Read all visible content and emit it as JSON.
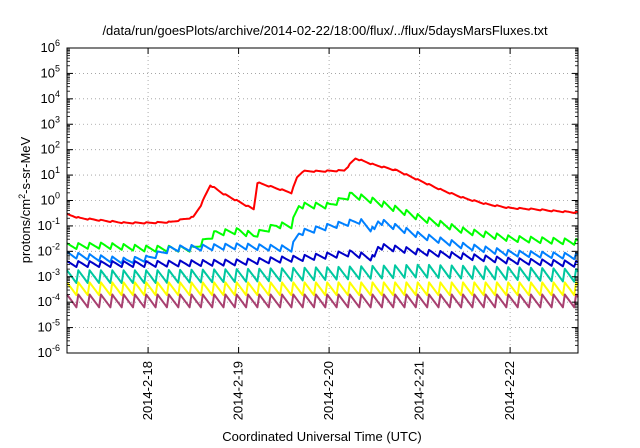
{
  "chart_data": {
    "type": "line",
    "title": "/data/run/goesPlots/archive/2014-02-22/18:00/flux/../flux/5daysMarsFluxes.txt",
    "xlabel": "Coordinated Universal Time (UTC)",
    "ylabel_parts": [
      "protons/cm",
      "2",
      "-s-sr-MeV"
    ],
    "y_scale": "log",
    "ylim": [
      1e-06,
      1000000.0
    ],
    "y_ticks": [
      {
        "value": 1e-06,
        "base": "10",
        "exp": "-6"
      },
      {
        "value": 1e-05,
        "base": "10",
        "exp": "-5"
      },
      {
        "value": 0.0001,
        "base": "10",
        "exp": "-4"
      },
      {
        "value": 0.001,
        "base": "10",
        "exp": "-3"
      },
      {
        "value": 0.01,
        "base": "10",
        "exp": "-2"
      },
      {
        "value": 0.1,
        "base": "10",
        "exp": "-1"
      },
      {
        "value": 1,
        "base": "10",
        "exp": "0"
      },
      {
        "value": 10.0,
        "base": "10",
        "exp": "1"
      },
      {
        "value": 100.0,
        "base": "10",
        "exp": "2"
      },
      {
        "value": 1000.0,
        "base": "10",
        "exp": "3"
      },
      {
        "value": 10000.0,
        "base": "10",
        "exp": "4"
      },
      {
        "value": 100000.0,
        "base": "10",
        "exp": "5"
      },
      {
        "value": 1000000.0,
        "base": "10",
        "exp": "6"
      }
    ],
    "x_range": [
      "2014-02-17T02:30",
      "2014-02-22T18:00"
    ],
    "x_ticks": [
      {
        "date": "2014-02-18T00:00",
        "label": "2014-2-18"
      },
      {
        "date": "2014-02-19T00:00",
        "label": "2014-2-19"
      },
      {
        "date": "2014-02-20T00:00",
        "label": "2014-2-20"
      },
      {
        "date": "2014-02-21T00:00",
        "label": "2014-2-21"
      },
      {
        "date": "2014-02-22T00:00",
        "label": "2014-2-22"
      }
    ],
    "grid": true,
    "legend": "none",
    "series": [
      {
        "color": "#ff0000",
        "points": [
          [
            "2014-02-17T02:30",
            0.28
          ],
          [
            "2014-02-17T06:00",
            0.2
          ],
          [
            "2014-02-17T12:00",
            0.16
          ],
          [
            "2014-02-17T18:00",
            0.13
          ],
          [
            "2014-02-18T00:00",
            0.13
          ],
          [
            "2014-02-18T06:00",
            0.14
          ],
          [
            "2014-02-18T12:00",
            0.22
          ],
          [
            "2014-02-18T14:00",
            0.65
          ],
          [
            "2014-02-18T16:30",
            4.0
          ],
          [
            "2014-02-18T20:00",
            1.8
          ],
          [
            "2014-02-19T00:00",
            0.9
          ],
          [
            "2014-02-19T04:00",
            0.45
          ],
          [
            "2014-02-19T05:00",
            5.0
          ],
          [
            "2014-02-19T10:00",
            3.0
          ],
          [
            "2014-02-19T14:00",
            2.0
          ],
          [
            "2014-02-19T15:30",
            8.0
          ],
          [
            "2014-02-19T17:00",
            14.0
          ],
          [
            "2014-02-19T22:00",
            14.0
          ],
          [
            "2014-02-20T04:00",
            15.0
          ],
          [
            "2014-02-20T07:00",
            45.0
          ],
          [
            "2014-02-20T12:00",
            25.0
          ],
          [
            "2014-02-20T18:00",
            15.0
          ],
          [
            "2014-02-21T00:00",
            6.0
          ],
          [
            "2014-02-21T06:00",
            2.5
          ],
          [
            "2014-02-21T12:00",
            1.2
          ],
          [
            "2014-02-21T18:00",
            0.7
          ],
          [
            "2014-02-22T00:00",
            0.5
          ],
          [
            "2014-02-22T06:00",
            0.45
          ],
          [
            "2014-02-22T12:00",
            0.38
          ],
          [
            "2014-02-22T18:00",
            0.33
          ]
        ]
      },
      {
        "color": "#00ff00",
        "points": [
          [
            "2014-02-17T02:30",
            0.015
          ],
          [
            "2014-02-17T12:00",
            0.016
          ],
          [
            "2014-02-18T00:00",
            0.012
          ],
          [
            "2014-02-18T12:00",
            0.012
          ],
          [
            "2014-02-18T18:00",
            0.05
          ],
          [
            "2014-02-19T00:00",
            0.06
          ],
          [
            "2014-02-19T04:00",
            0.04
          ],
          [
            "2014-02-19T10:00",
            0.1
          ],
          [
            "2014-02-19T14:00",
            0.1
          ],
          [
            "2014-02-19T16:00",
            0.6
          ],
          [
            "2014-02-20T00:00",
            0.6
          ],
          [
            "2014-02-20T06:00",
            1.6
          ],
          [
            "2014-02-20T12:00",
            0.9
          ],
          [
            "2014-02-21T00:00",
            0.2
          ],
          [
            "2014-02-21T12:00",
            0.06
          ],
          [
            "2014-02-22T00:00",
            0.03
          ],
          [
            "2014-02-22T18:00",
            0.022
          ]
        ]
      },
      {
        "color": "#0080ff",
        "points": [
          [
            "2014-02-17T02:30",
            0.007
          ],
          [
            "2014-02-17T18:00",
            0.004
          ],
          [
            "2014-02-18T00:00",
            0.005
          ],
          [
            "2014-02-18T06:00",
            0.012
          ],
          [
            "2014-02-19T00:00",
            0.015
          ],
          [
            "2014-02-19T14:00",
            0.012
          ],
          [
            "2014-02-19T16:00",
            0.05
          ],
          [
            "2014-02-20T00:00",
            0.09
          ],
          [
            "2014-02-20T08:00",
            0.15
          ],
          [
            "2014-02-20T12:00",
            0.06
          ],
          [
            "2014-02-20T13:00",
            0.15
          ],
          [
            "2014-02-21T00:00",
            0.04
          ],
          [
            "2014-02-21T12:00",
            0.015
          ],
          [
            "2014-02-22T00:00",
            0.008
          ],
          [
            "2014-02-22T18:00",
            0.006
          ]
        ]
      },
      {
        "color": "#0000c8",
        "points": [
          [
            "2014-02-17T02:30",
            0.003
          ],
          [
            "2014-02-18T00:00",
            0.003
          ],
          [
            "2014-02-19T00:00",
            0.0035
          ],
          [
            "2014-02-19T16:00",
            0.005
          ],
          [
            "2014-02-20T06:00",
            0.008
          ],
          [
            "2014-02-20T12:00",
            0.005
          ],
          [
            "2014-02-20T13:00",
            0.015
          ],
          [
            "2014-02-21T00:00",
            0.009
          ],
          [
            "2014-02-22T00:00",
            0.004
          ],
          [
            "2014-02-22T18:00",
            0.003
          ]
        ]
      },
      {
        "color": "#00c8a0",
        "points": [
          [
            "2014-02-17T02:30",
            0.0009
          ],
          [
            "2014-02-18T00:00",
            0.0009
          ],
          [
            "2014-02-19T00:00",
            0.001
          ],
          [
            "2014-02-20T00:00",
            0.0012
          ],
          [
            "2014-02-21T00:00",
            0.0015
          ],
          [
            "2014-02-22T00:00",
            0.0012
          ],
          [
            "2014-02-22T18:00",
            0.001
          ]
        ]
      },
      {
        "color": "#ffff00",
        "points": [
          [
            "2014-02-17T02:30",
            0.0003
          ],
          [
            "2014-02-19T00:00",
            0.0003
          ],
          [
            "2014-02-21T00:00",
            0.0003
          ],
          [
            "2014-02-22T18:00",
            0.0003
          ]
        ]
      },
      {
        "color": "#a84070",
        "points": [
          [
            "2014-02-17T02:30",
            0.0001
          ],
          [
            "2014-02-19T00:00",
            0.0001
          ],
          [
            "2014-02-21T00:00",
            0.0001
          ],
          [
            "2014-02-22T18:00",
            0.0001
          ]
        ]
      }
    ]
  }
}
